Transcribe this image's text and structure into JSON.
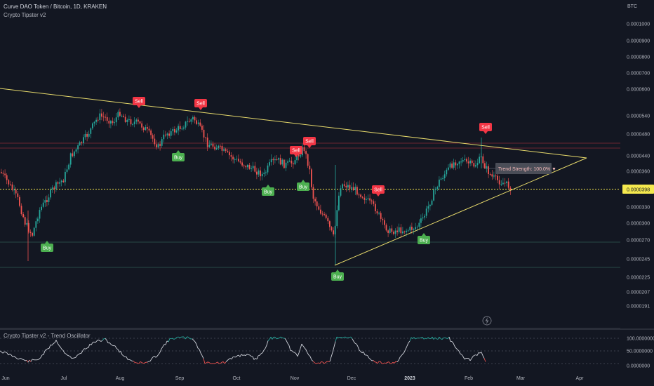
{
  "header": {
    "symbol_line": "Curve DAO Token / Bitcoin, 1D, KRAKEN",
    "indicator": "Crypto Tipster v2"
  },
  "price_axis": {
    "currency": "BTC",
    "ticks": [
      "0.0001000",
      "0.0000900",
      "0.0000800",
      "0.0000700",
      "0.0000600",
      "0.0000540",
      "0.0000480",
      "0.0000440",
      "0.0000398",
      "0.0000360",
      "0.0000330",
      "0.0000300",
      "0.0000270",
      "0.0000245",
      "0.0000225",
      "0.0000207",
      "0.0000191"
    ],
    "current_price": "0.0000398"
  },
  "time_axis": {
    "labels": [
      "Jun",
      "Jul",
      "Aug",
      "Sep",
      "Oct",
      "Nov",
      "Dec",
      "2023",
      "Feb",
      "Mar",
      "Apr"
    ]
  },
  "signals": [
    {
      "label": "Sell",
      "type": "sell"
    },
    {
      "label": "Sell",
      "type": "sell"
    },
    {
      "label": "Buy",
      "type": "buy"
    },
    {
      "label": "Buy",
      "type": "buy"
    },
    {
      "label": "Sell",
      "type": "sell"
    },
    {
      "label": "Sell",
      "type": "sell"
    },
    {
      "label": "Buy",
      "type": "buy"
    },
    {
      "label": "Buy",
      "type": "buy"
    },
    {
      "label": "Buy",
      "type": "buy"
    },
    {
      "label": "Sell",
      "type": "sell"
    },
    {
      "label": "Buy",
      "type": "buy"
    },
    {
      "label": "Sell",
      "type": "sell"
    }
  ],
  "trend_strength": "Trend Strength: 100.0% ▼",
  "oscillator": {
    "title": "Crypto Tipster v2 - Trend Oscillator",
    "ticks": [
      "100.0000000",
      "50.0000000",
      "0.0000000"
    ]
  },
  "colors": {
    "background": "#131722",
    "bull": "#26a69a",
    "bear": "#ef5350",
    "buy_label": "#4caf50",
    "sell_label": "#f23645",
    "trendline": "#e6d96b",
    "price_tag": "#f5e94e"
  },
  "icons": {
    "replay": "lightning-icon"
  }
}
